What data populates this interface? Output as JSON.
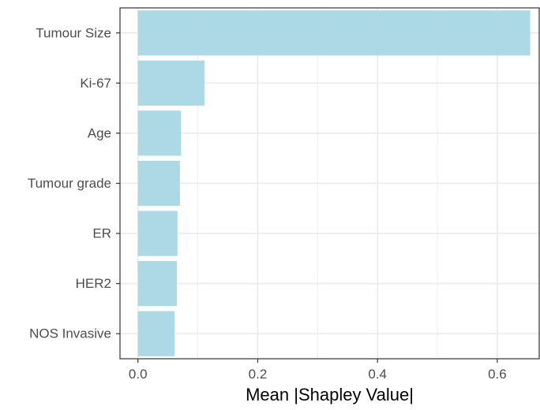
{
  "chart_data": {
    "type": "bar",
    "orientation": "horizontal",
    "title": "",
    "xlabel": "Mean |Shapley Value|",
    "ylabel": "",
    "categories": [
      "Tumour Size",
      "Ki-67",
      "Age",
      "Tumour grade",
      "ER",
      "HER2",
      "NOS Invasive"
    ],
    "values": [
      0.655,
      0.111,
      0.072,
      0.07,
      0.066,
      0.065,
      0.061
    ],
    "xlim": [
      -0.03,
      0.67
    ],
    "xticks": [
      0.0,
      0.2,
      0.4,
      0.6
    ],
    "xtick_labels": [
      "0.0",
      "0.2",
      "0.4",
      "0.6"
    ],
    "grid": true,
    "legend": "none",
    "colors": {
      "bar": "#add8e6",
      "panel_border": "#333333",
      "grid": "#ebebeb",
      "tick_text": "#4d4d4d",
      "axis_title": "#000000"
    }
  }
}
